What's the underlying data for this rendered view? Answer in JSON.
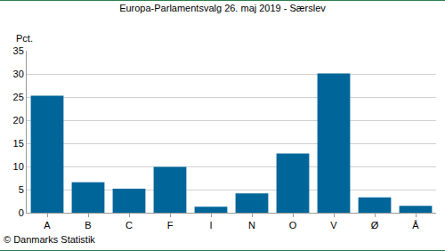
{
  "chart_data": {
    "type": "bar",
    "title": "Europa-Parlamentsvalg 26. maj 2019 - Særslev",
    "ylabel": "Pct.",
    "note": "© Danmarks Statistik",
    "categories": [
      "A",
      "B",
      "C",
      "F",
      "I",
      "N",
      "O",
      "V",
      "Ø",
      "Å"
    ],
    "values": [
      25.3,
      6.6,
      5.2,
      9.9,
      1.3,
      4.2,
      12.8,
      30.1,
      3.3,
      1.5
    ],
    "color": "#00669a",
    "ylim": [
      0,
      35
    ],
    "yticks": [
      0,
      5,
      10,
      15,
      20,
      25,
      30,
      35
    ],
    "grid": true
  }
}
